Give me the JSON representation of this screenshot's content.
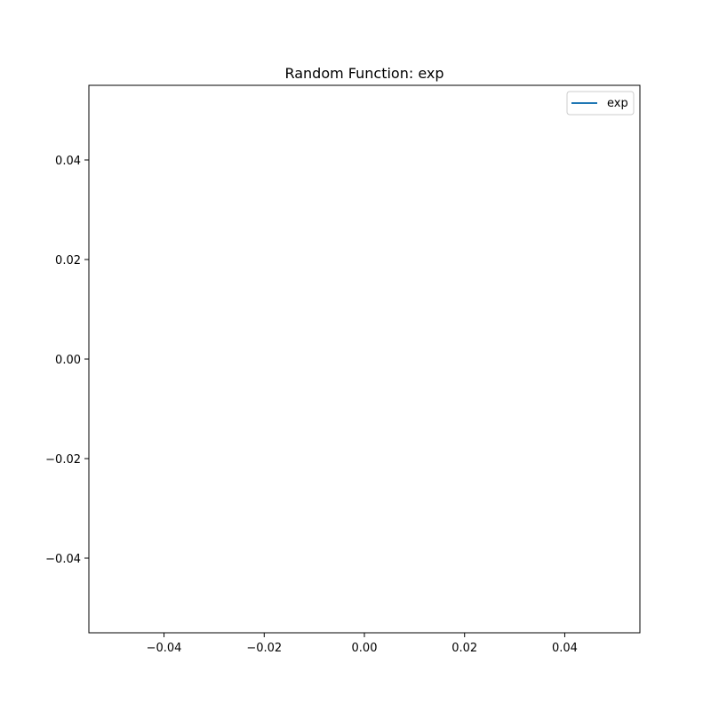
{
  "chart_data": {
    "type": "line",
    "title": "Random Function: exp",
    "xlabel": "",
    "ylabel": "",
    "xlim": [
      -0.055,
      0.055
    ],
    "ylim": [
      -0.055,
      0.055
    ],
    "xticks": [
      -0.04,
      -0.02,
      0.0,
      0.02,
      0.04
    ],
    "yticks": [
      -0.04,
      -0.02,
      0.0,
      0.02,
      0.04
    ],
    "xtick_labels": [
      "−0.04",
      "−0.02",
      "0.00",
      "0.02",
      "0.04"
    ],
    "ytick_labels": [
      "−0.04",
      "−0.02",
      "0.00",
      "0.02",
      "0.04"
    ],
    "grid": false,
    "legend_position": "upper right",
    "series": [
      {
        "name": "exp",
        "color": "#1f77b4",
        "x": [],
        "y": []
      }
    ]
  }
}
